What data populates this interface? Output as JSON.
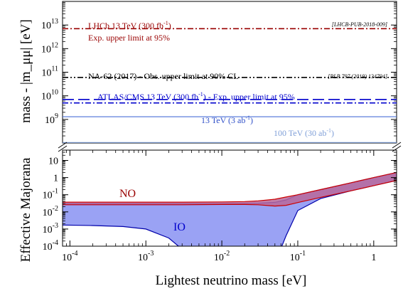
{
  "chart_data": [
    {
      "type": "line",
      "panel": "upper",
      "ylabel": "mass - |m_μμ| [eV]",
      "y_scale": "log",
      "ylim": [
        100000000.0,
        100000000000000.0
      ],
      "yticks": [
        {
          "value": 1000000000.0,
          "base": "10",
          "exp": "9"
        },
        {
          "value": 10000000000.0,
          "base": "10",
          "exp": "10"
        },
        {
          "value": 100000000000.0,
          "base": "10",
          "exp": "11"
        },
        {
          "value": 1000000000000.0,
          "base": "10",
          "exp": "12"
        },
        {
          "value": 10000000000000.0,
          "base": "10",
          "exp": "13"
        }
      ],
      "limits": [
        {
          "name": "LHCb 13 TeV (300 fb-1)",
          "label_pre": "LHCb 13 TeV (300 fb",
          "label_sup": "-1",
          "label_post": ")",
          "label2": "Exp. upper limit at 95%",
          "reference": "[LHCB-PUB-2018-009]",
          "value": 7000000000000.0,
          "color": "#990000",
          "style": "dashdot"
        },
        {
          "name": "NA-62 (2017) - Obs. upper limit at 90% CL",
          "label_pre": "NA-62 (2017) - Obs. upper limit at 90% CL",
          "reference": "[PLB 797 (2019) 134794]",
          "value": 60000000000.0,
          "color": "#000000",
          "style": "dashdotdot"
        },
        {
          "name": "ATLAS/CMS 13 TeV (300 fb-1) - Exp. upper limit at 95%",
          "label_pre": "ATLAS/CMS 13 TeV (300 fb",
          "label_sup": "-1",
          "label_post": ") - Exp. upper limit at 95%",
          "value": 7000000000.0,
          "color": "#0000cc",
          "style": "longdash"
        },
        {
          "name": "ATLAS/CMS 13 TeV (300 fb-1) - Exp. upper limit at 95%",
          "value": 5000000000.0,
          "color": "#0000cc",
          "style": "dashdot"
        },
        {
          "name": "13 TeV (3 ab-1)",
          "label_pre": "13 TeV (3 ab",
          "label_sup": "-1",
          "label_post": ")",
          "value": 1300000000.0,
          "color": "#4a6fd8",
          "style": "solid"
        },
        {
          "name": "100 TeV (30 ab-1)",
          "label_pre": "100 TeV (30 ab",
          "label_sup": "-1",
          "label_post": ")",
          "value": 105000000.0,
          "color": "#7f9fd8",
          "style": "solid"
        }
      ]
    },
    {
      "type": "area",
      "panel": "lower",
      "xlabel": "Lightest neutrino mass [eV]",
      "ylabel": "Effective Majorana",
      "x_scale": "log",
      "y_scale": "log",
      "xlim": [
        8e-05,
        2.0
      ],
      "ylim": [
        0.0001,
        40
      ],
      "xticks": [
        {
          "value": 0.0001,
          "base": "10",
          "exp": "-4"
        },
        {
          "value": 0.001,
          "base": "10",
          "exp": "-3"
        },
        {
          "value": 0.01,
          "base": "10",
          "exp": "-2"
        },
        {
          "value": 0.1,
          "base": "10",
          "exp": "-1"
        },
        {
          "value": 1,
          "base": "1",
          "exp": ""
        }
      ],
      "yticks": [
        {
          "value": 0.0001,
          "base": "10",
          "exp": "-4"
        },
        {
          "value": 0.001,
          "base": "10",
          "exp": "-3"
        },
        {
          "value": 0.01,
          "base": "10",
          "exp": "-2"
        },
        {
          "value": 0.1,
          "base": "10",
          "exp": "-1"
        },
        {
          "value": 1,
          "base": "1",
          "exp": ""
        },
        {
          "value": 10,
          "base": "10",
          "exp": ""
        }
      ],
      "series": [
        {
          "name": "NO",
          "color": "#cc0000",
          "fill": "#b8689a",
          "x": [
            8e-05,
            0.0003,
            0.001,
            0.003,
            0.01,
            0.02,
            0.03,
            0.05,
            0.07,
            0.1,
            0.2,
            0.5,
            1.0,
            2.0
          ],
          "upper": [
            0.037,
            0.037,
            0.037,
            0.037,
            0.038,
            0.04,
            0.044,
            0.055,
            0.074,
            0.1,
            0.2,
            0.5,
            1.0,
            2.0
          ],
          "lower": [
            0.026,
            0.026,
            0.026,
            0.026,
            0.027,
            0.027,
            0.026,
            0.022,
            0.024,
            0.035,
            0.07,
            0.17,
            0.34,
            0.68
          ]
        },
        {
          "name": "IO",
          "color": "#0000aa",
          "fill": "#9aa2f4",
          "x": [
            8e-05,
            0.0002,
            0.0005,
            0.001,
            0.002,
            0.005,
            0.01,
            0.02,
            0.03,
            0.05,
            0.07,
            0.1,
            0.2,
            0.5,
            1.0,
            2.0
          ],
          "upper": [
            0.03,
            0.03,
            0.03,
            0.03,
            0.03,
            0.03,
            0.03,
            0.031,
            0.032,
            0.036,
            0.05,
            0.1,
            0.2,
            0.5,
            1.0,
            2.0
          ],
          "lower": [
            0.0017,
            0.0016,
            0.0014,
            0.001,
            0.0003,
            null,
            null,
            null,
            null,
            null,
            0.0004,
            0.012,
            0.06,
            0.17,
            0.34,
            0.68
          ]
        }
      ],
      "annotations": [
        {
          "text": "NO",
          "color": "#990000"
        },
        {
          "text": "IO",
          "color": "#0000cc"
        }
      ]
    }
  ]
}
